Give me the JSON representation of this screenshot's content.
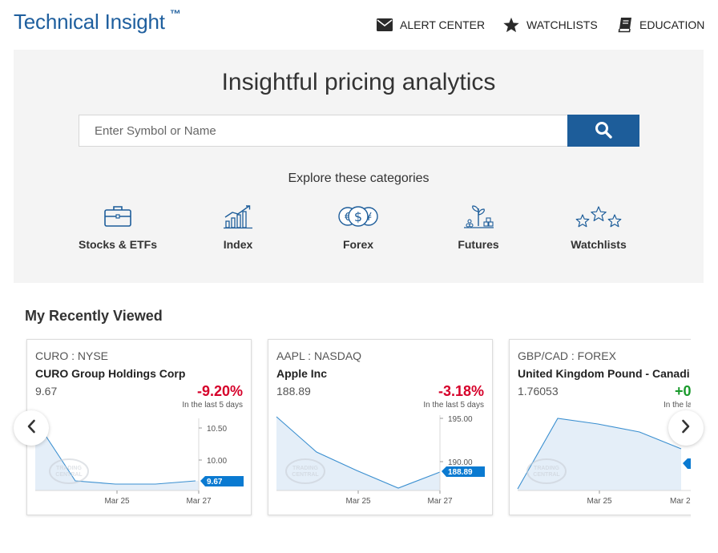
{
  "header": {
    "brand": "Technical Insight",
    "trademark": "™",
    "nav": [
      {
        "label": "ALERT CENTER",
        "icon": "envelope-icon"
      },
      {
        "label": "WATCHLISTS",
        "icon": "star-icon"
      },
      {
        "label": "EDUCATION",
        "icon": "book-icon"
      }
    ]
  },
  "hero": {
    "title": "Insightful pricing analytics",
    "search_placeholder": "Enter Symbol or Name",
    "search_value": "",
    "explore_label": "Explore these categories",
    "categories": [
      {
        "label": "Stocks & ETFs",
        "icon": "briefcase-icon"
      },
      {
        "label": "Index",
        "icon": "bar-chart-trend-icon"
      },
      {
        "label": "Forex",
        "icon": "currency-coins-icon"
      },
      {
        "label": "Futures",
        "icon": "plant-growth-icon"
      },
      {
        "label": "Watchlists",
        "icon": "three-stars-icon"
      }
    ]
  },
  "recently_viewed": {
    "title": "My Recently Viewed",
    "cards": [
      {
        "symbol": "CURO : NYSE",
        "name": "CURO Group Holdings Corp",
        "price": "9.67",
        "change": "-9.20%",
        "direction": "neg",
        "note": "In the last 5 days",
        "ticks": [
          "10.50",
          "10.00"
        ],
        "last_label": "9.67",
        "dates": [
          "Mar 25",
          "Mar 27"
        ],
        "watermark": [
          "TRADING",
          "CENTRAL"
        ]
      },
      {
        "symbol": "AAPL : NASDAQ",
        "name": "Apple Inc",
        "price": "188.89",
        "change": "-3.18%",
        "direction": "neg",
        "note": "In the last 5 days",
        "ticks": [
          "195.00",
          "190.00"
        ],
        "last_label": "188.89",
        "dates": [
          "Mar 25",
          "Mar 27"
        ],
        "watermark": [
          "TRADING",
          "CENTRAL"
        ]
      },
      {
        "symbol": "GBP/CAD : FOREX",
        "name": "United Kingdom Pound - Canadi",
        "price": "1.76053",
        "change": "+0",
        "direction": "pos",
        "note": "In the la",
        "ticks": [],
        "last_label": "",
        "dates": [
          "Mar 25",
          "Mar 2"
        ],
        "watermark": [
          "TRADING",
          "CENTRAL"
        ]
      }
    ]
  },
  "colors": {
    "brand": "#1f5f9e",
    "search_button": "#1d5d9a",
    "negative": "#d6002a",
    "positive": "#1a9a2c",
    "chart_line": "#3a8fd0",
    "chart_fill": "#e4eef8",
    "price_tag": "#0a7ad1"
  }
}
